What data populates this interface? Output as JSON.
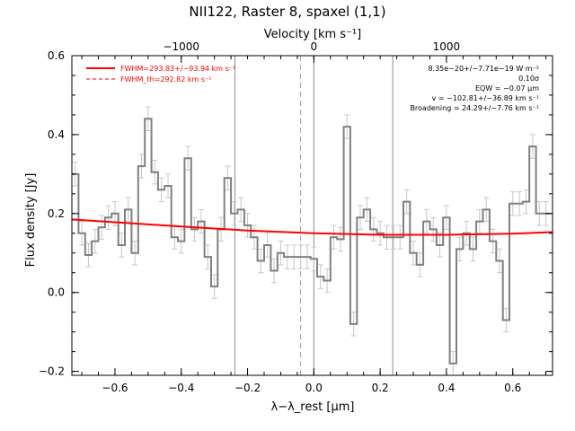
{
  "chart_data": {
    "type": "line",
    "title": "NII122, Raster 8, spaxel (1,1)",
    "xlabel": "λ−λ_rest [μm]",
    "ylabel": "Flux density [Jy]",
    "top_axis_label": "Velocity [km s⁻¹]",
    "xlim": [
      -0.73,
      0.72
    ],
    "ylim": [
      -0.21,
      0.6
    ],
    "x_ticks": [
      -0.6,
      -0.4,
      -0.2,
      0.0,
      0.2,
      0.4,
      0.6
    ],
    "x_tick_labels": [
      "−0.6",
      "−0.4",
      "−0.2",
      "0.0",
      "0.2",
      "0.4",
      "0.6"
    ],
    "y_ticks": [
      -0.2,
      0.0,
      0.2,
      0.4,
      0.6
    ],
    "y_tick_labels": [
      "−0.2",
      "0.0",
      "0.2",
      "0.4",
      "0.6"
    ],
    "top_ticks": [
      -1000,
      0,
      1000
    ],
    "top_tick_labels": [
      "−1000",
      "0",
      "1000"
    ],
    "top_tick_positions_um": [
      -0.4,
      0.0,
      0.4
    ],
    "vertical_lines_solid": [
      -0.238,
      0.0,
      0.238
    ],
    "vertical_lines_dashed": [
      -0.04
    ],
    "series": [
      {
        "name": "spectrum",
        "style": "step",
        "color": "#808080",
        "bin_width": 0.02,
        "x": [
          -0.72,
          -0.7,
          -0.68,
          -0.66,
          -0.64,
          -0.62,
          -0.6,
          -0.58,
          -0.56,
          -0.54,
          -0.52,
          -0.5,
          -0.48,
          -0.46,
          -0.44,
          -0.42,
          -0.4,
          -0.38,
          -0.36,
          -0.34,
          -0.32,
          -0.3,
          -0.28,
          -0.26,
          -0.24,
          -0.22,
          -0.2,
          -0.18,
          -0.16,
          -0.14,
          -0.12,
          -0.1,
          -0.08,
          -0.06,
          -0.04,
          -0.02,
          0.0,
          0.02,
          0.04,
          0.06,
          0.08,
          0.1,
          0.12,
          0.14,
          0.16,
          0.18,
          0.2,
          0.22,
          0.24,
          0.26,
          0.28,
          0.3,
          0.32,
          0.34,
          0.36,
          0.38,
          0.4,
          0.42,
          0.44,
          0.46,
          0.48,
          0.5,
          0.52,
          0.54,
          0.56,
          0.58,
          0.6,
          0.62,
          0.64,
          0.66,
          0.68,
          0.7
        ],
        "values": [
          0.3,
          0.15,
          0.095,
          0.13,
          0.165,
          0.19,
          0.2,
          0.12,
          0.21,
          0.1,
          0.32,
          0.44,
          0.305,
          0.26,
          0.27,
          0.14,
          0.13,
          0.34,
          0.16,
          0.18,
          0.09,
          0.015,
          0.16,
          0.29,
          0.2,
          0.21,
          0.17,
          0.14,
          0.08,
          0.12,
          0.055,
          0.1,
          0.09,
          0.09,
          0.09,
          0.09,
          0.085,
          0.04,
          0.03,
          0.14,
          0.135,
          0.42,
          -0.08,
          0.19,
          0.21,
          0.16,
          0.15,
          0.14,
          0.14,
          0.14,
          0.23,
          0.1,
          0.07,
          0.18,
          0.16,
          0.12,
          0.19,
          -0.18,
          0.11,
          0.15,
          0.11,
          0.18,
          0.21,
          0.13,
          0.08,
          -0.07,
          0.225,
          0.225,
          0.23,
          0.37,
          0.2,
          0.2
        ],
        "errors": [
          0.03,
          0.03,
          0.03,
          0.03,
          0.03,
          0.03,
          0.03,
          0.03,
          0.03,
          0.03,
          0.03,
          0.03,
          0.03,
          0.03,
          0.03,
          0.03,
          0.03,
          0.03,
          0.03,
          0.03,
          0.03,
          0.03,
          0.03,
          0.03,
          0.03,
          0.03,
          0.03,
          0.03,
          0.03,
          0.03,
          0.03,
          0.03,
          0.03,
          0.03,
          0.03,
          0.03,
          0.03,
          0.03,
          0.03,
          0.03,
          0.03,
          0.03,
          0.03,
          0.03,
          0.03,
          0.03,
          0.03,
          0.03,
          0.03,
          0.03,
          0.03,
          0.03,
          0.03,
          0.03,
          0.03,
          0.03,
          0.03,
          0.03,
          0.03,
          0.03,
          0.03,
          0.03,
          0.03,
          0.03,
          0.03,
          0.03,
          0.03,
          0.03,
          0.03,
          0.03,
          0.03,
          0.03
        ]
      },
      {
        "name": "FWHM=293.83+/−93.94 km s⁻¹",
        "style": "line",
        "color": "#ff0000",
        "x": [
          -0.73,
          -0.6,
          -0.4,
          -0.2,
          0.0,
          0.2,
          0.4,
          0.6,
          0.72
        ],
        "values": [
          0.185,
          0.178,
          0.167,
          0.157,
          0.15,
          0.146,
          0.146,
          0.149,
          0.153
        ]
      }
    ],
    "legend": {
      "position": "top-left",
      "entries": [
        {
          "label": "FWHM=293.83+/−93.94 km s⁻¹",
          "style": "solid",
          "color": "#ff0000"
        },
        {
          "label": "FWHM_th=292.82 km s⁻¹",
          "style": "dashed",
          "color": "#ff0000"
        }
      ]
    },
    "annotations": [
      "8.35e−20+/−7.71e−19 W m⁻²",
      "0.10σ",
      "EQW = −0.07 μm",
      "v = −102.81+/−36.89 km s⁻¹",
      "Broadening = 24.29+/−7.76 km s⁻¹"
    ]
  }
}
